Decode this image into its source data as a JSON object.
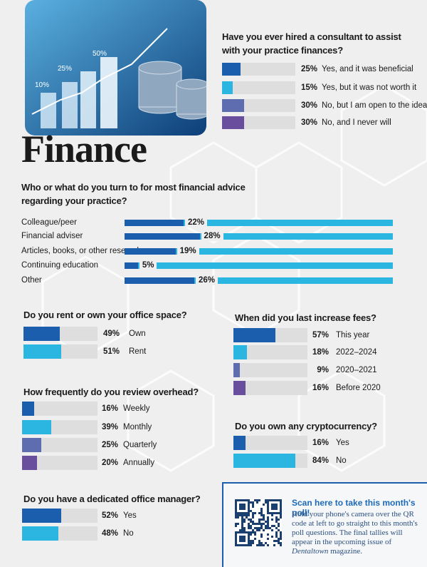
{
  "header": {
    "title": "Finance",
    "image_labels": [
      "10%",
      "25%",
      "50%"
    ]
  },
  "chart_data": [
    {
      "type": "bar",
      "orientation": "horizontal",
      "title": "Have you ever hired a consultant to assist with your practice finances?",
      "categories": [
        "Yes, and it was beneficial",
        "Yes, but it was not worth it",
        "No, but I am open to the idea",
        "No, and I never will"
      ],
      "values": [
        25,
        15,
        30,
        30
      ],
      "value_labels": [
        "25%",
        "15%",
        "30%",
        "30%"
      ],
      "colors": [
        "#1c5eae",
        "#2ab6e0",
        "#5d6db0",
        "#6a4e9e"
      ],
      "track_color": "#dedede",
      "xlim": [
        0,
        100
      ]
    },
    {
      "type": "bar",
      "orientation": "horizontal",
      "title": "Who or what do you turn to for most financial advice regarding your practice?",
      "categories": [
        "Colleague/peer",
        "Financial adviser",
        "Articles, books, or other research",
        "Continuing education",
        "Other"
      ],
      "values": [
        22,
        28,
        19,
        5,
        26
      ],
      "value_labels": [
        "22%",
        "28%",
        "19%",
        "5%",
        "26%"
      ],
      "color": "#1c5eae",
      "track_color": "#2ab6e0",
      "xlim": [
        0,
        100
      ]
    },
    {
      "type": "bar",
      "orientation": "horizontal",
      "title": "Do you rent or own your office space?",
      "categories": [
        "Own",
        "Rent"
      ],
      "values": [
        49,
        51
      ],
      "value_labels": [
        "49%",
        "51%"
      ],
      "colors": [
        "#1c5eae",
        "#2ab6e0"
      ],
      "track_color": "#dedede",
      "xlim": [
        0,
        100
      ]
    },
    {
      "type": "bar",
      "orientation": "horizontal",
      "title": "When did you last increase fees?",
      "categories": [
        "This year",
        "2022–2024",
        "2020–2021",
        "Before 2020"
      ],
      "values": [
        57,
        18,
        9,
        16
      ],
      "value_labels": [
        "57%",
        "18%",
        "9%",
        "16%"
      ],
      "colors": [
        "#1c5eae",
        "#2ab6e0",
        "#5d6db0",
        "#6a4e9e"
      ],
      "track_color": "#dedede",
      "xlim": [
        0,
        100
      ]
    },
    {
      "type": "bar",
      "orientation": "horizontal",
      "title": "How frequently do you review overhead?",
      "categories": [
        "Weekly",
        "Monthly",
        "Quarterly",
        "Annually"
      ],
      "values": [
        16,
        39,
        25,
        20
      ],
      "value_labels": [
        "16%",
        "39%",
        "25%",
        "20%"
      ],
      "colors": [
        "#1c5eae",
        "#2ab6e0",
        "#5d6db0",
        "#6a4e9e"
      ],
      "track_color": "#dedede",
      "xlim": [
        0,
        100
      ]
    },
    {
      "type": "bar",
      "orientation": "horizontal",
      "title": "Do you own any cryptocurrency?",
      "categories": [
        "Yes",
        "No"
      ],
      "values": [
        16,
        84
      ],
      "value_labels": [
        "16%",
        "84%"
      ],
      "colors": [
        "#1c5eae",
        "#2ab6e0"
      ],
      "track_color": "#dedede",
      "xlim": [
        0,
        100
      ]
    },
    {
      "type": "bar",
      "orientation": "horizontal",
      "title": "Do you have a dedicated office manager?",
      "categories": [
        "Yes",
        "No"
      ],
      "values": [
        52,
        48
      ],
      "value_labels": [
        "52%",
        "48%"
      ],
      "colors": [
        "#1c5eae",
        "#2ab6e0"
      ],
      "track_color": "#dedede",
      "xlim": [
        0,
        100
      ]
    }
  ],
  "poll": {
    "heading": "Scan here to take this month's poll!",
    "body": [
      "Hold your phone's camera over the QR code at left to go straight to this month's poll questions. The final tallies will appear in the upcoming issue of ",
      "Dentaltown",
      " magazine."
    ]
  }
}
